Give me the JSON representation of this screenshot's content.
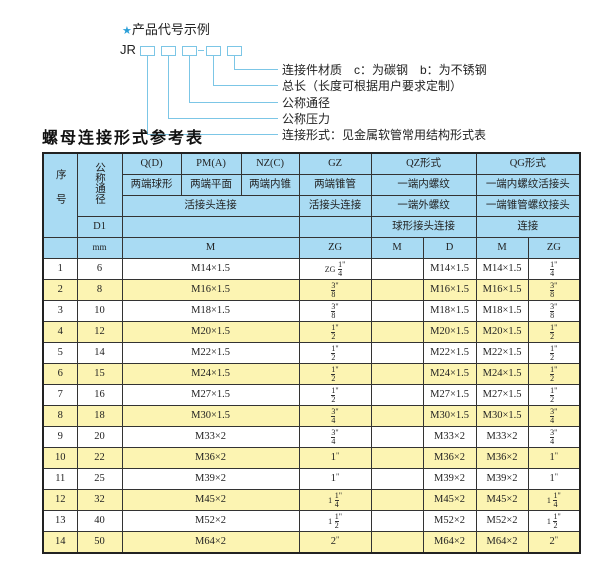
{
  "code_example": {
    "title": "产品代号示例",
    "star_icon": "star-icon",
    "prefix": "JR",
    "labels": [
      "连接件材质　c：为碳钢　b：为不锈钢",
      "总长（长度可根据用户要求定制）",
      "公称通径",
      "公称压力",
      "连接形式：见金属软管常用结构形式表"
    ]
  },
  "table_title": "螺母连接形式参考表",
  "colors": {
    "header_bg": "#a9dbf3",
    "alt_row_bg": "#fcf4b2",
    "accent": "#2a9fd8"
  },
  "header": {
    "seq": "序号",
    "dn": "公称通径",
    "q": "Q(D)",
    "pm": "PM(A)",
    "nz": "NZ(C)",
    "gz": "GZ",
    "qz": "QZ形式",
    "qg": "QG形式",
    "q_desc": "两端球形",
    "pm_desc": "两端平面",
    "nz_desc": "两端内锥",
    "gz_desc": "两端锥管",
    "qz_desc1": "一端内螺纹",
    "qg_desc1": "一端内螺纹活接头",
    "group_desc": "活接头连接",
    "gz_desc2": "活接头连接",
    "qz_desc2": "一端外螺纹",
    "qg_desc2": "一端锥管螺纹接头",
    "d1": "D1",
    "qz_desc3": "球形接头连接",
    "qg_desc3": "连接",
    "mm": "mm",
    "m": "M",
    "zg": "ZG",
    "qz_m": "M",
    "qz_d": "D",
    "qg_m": "M",
    "qg_zg": "ZG"
  },
  "rows": [
    {
      "no": "1",
      "dn": "6",
      "m": "M14×1.5",
      "zg": {
        "pre": "ZG",
        "num": "1",
        "den": "4"
      },
      "qz_m": "",
      "qz_d": "M14×1.5",
      "qg_m": "M14×1.5",
      "qg_zg": {
        "num": "1",
        "den": "4"
      }
    },
    {
      "no": "2",
      "dn": "8",
      "m": "M16×1.5",
      "zg": {
        "num": "3",
        "den": "8"
      },
      "qz_m": "",
      "qz_d": "M16×1.5",
      "qg_m": "M16×1.5",
      "qg_zg": {
        "num": "3",
        "den": "8"
      }
    },
    {
      "no": "3",
      "dn": "10",
      "m": "M18×1.5",
      "zg": {
        "num": "3",
        "den": "8"
      },
      "qz_m": "",
      "qz_d": "M18×1.5",
      "qg_m": "M18×1.5",
      "qg_zg": {
        "num": "3",
        "den": "8"
      }
    },
    {
      "no": "4",
      "dn": "12",
      "m": "M20×1.5",
      "zg": {
        "num": "1",
        "den": "2"
      },
      "qz_m": "",
      "qz_d": "M20×1.5",
      "qg_m": "M20×1.5",
      "qg_zg": {
        "num": "1",
        "den": "2"
      }
    },
    {
      "no": "5",
      "dn": "14",
      "m": "M22×1.5",
      "zg": {
        "num": "1",
        "den": "2"
      },
      "qz_m": "",
      "qz_d": "M22×1.5",
      "qg_m": "M22×1.5",
      "qg_zg": {
        "num": "1",
        "den": "2"
      }
    },
    {
      "no": "6",
      "dn": "15",
      "m": "M24×1.5",
      "zg": {
        "num": "1",
        "den": "2"
      },
      "qz_m": "",
      "qz_d": "M24×1.5",
      "qg_m": "M24×1.5",
      "qg_zg": {
        "num": "1",
        "den": "2"
      }
    },
    {
      "no": "7",
      "dn": "16",
      "m": "M27×1.5",
      "zg": {
        "num": "1",
        "den": "2"
      },
      "qz_m": "",
      "qz_d": "M27×1.5",
      "qg_m": "M27×1.5",
      "qg_zg": {
        "num": "1",
        "den": "2"
      }
    },
    {
      "no": "8",
      "dn": "18",
      "m": "M30×1.5",
      "zg": {
        "num": "3",
        "den": "4"
      },
      "qz_m": "",
      "qz_d": "M30×1.5",
      "qg_m": "M30×1.5",
      "qg_zg": {
        "num": "3",
        "den": "4"
      }
    },
    {
      "no": "9",
      "dn": "20",
      "m": "M33×2",
      "zg": {
        "num": "3",
        "den": "4"
      },
      "qz_m": "",
      "qz_d": "M33×2",
      "qg_m": "M33×2",
      "qg_zg": {
        "num": "3",
        "den": "4"
      }
    },
    {
      "no": "10",
      "dn": "22",
      "m": "M36×2",
      "zg": {
        "text": "1"
      },
      "qz_m": "",
      "qz_d": "M36×2",
      "qg_m": "M36×2",
      "qg_zg": {
        "text": "1"
      }
    },
    {
      "no": "11",
      "dn": "25",
      "m": "M39×2",
      "zg": {
        "text": "1"
      },
      "qz_m": "",
      "qz_d": "M39×2",
      "qg_m": "M39×2",
      "qg_zg": {
        "text": "1"
      }
    },
    {
      "no": "12",
      "dn": "32",
      "m": "M45×2",
      "zg": {
        "pre": "1",
        "num": "1",
        "den": "4"
      },
      "qz_m": "",
      "qz_d": "M45×2",
      "qg_m": "M45×2",
      "qg_zg": {
        "pre": "1",
        "num": "1",
        "den": "4"
      }
    },
    {
      "no": "13",
      "dn": "40",
      "m": "M52×2",
      "zg": {
        "pre": "1",
        "num": "1",
        "den": "2"
      },
      "qz_m": "",
      "qz_d": "M52×2",
      "qg_m": "M52×2",
      "qg_zg": {
        "pre": "1",
        "num": "1",
        "den": "2"
      }
    },
    {
      "no": "14",
      "dn": "50",
      "m": "M64×2",
      "zg": {
        "text": "2"
      },
      "qz_m": "",
      "qz_d": "M64×2",
      "qg_m": "M64×2",
      "qg_zg": {
        "text": "2"
      }
    }
  ],
  "inch_mark": "\""
}
